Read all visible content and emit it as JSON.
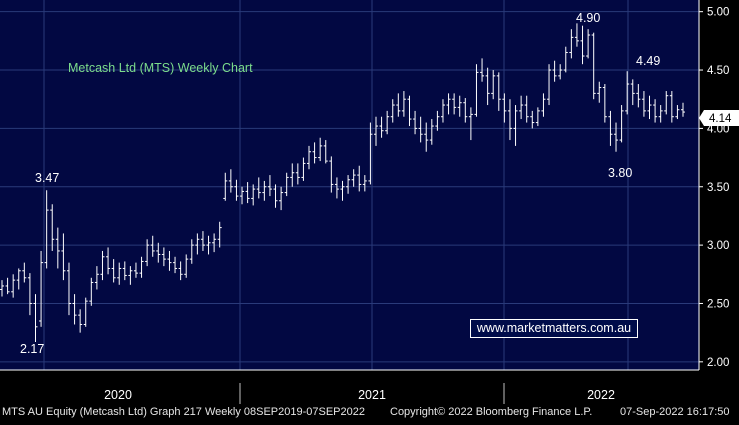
{
  "chart_data": {
    "type": "ohlc",
    "title": "Metcash Ltd (MTS) Weekly Chart",
    "xlabel": "",
    "ylabel": "",
    "ylim": [
      1.93,
      5.1
    ],
    "y_ticks": [
      "2.00",
      "2.50",
      "3.00",
      "3.50",
      "4.00",
      "4.50",
      "5.00"
    ],
    "x_period_labels": [
      "2020",
      "2021",
      "2022"
    ],
    "grid": true,
    "last_price_label": "4.14",
    "annotations": [
      "3.47",
      "2.17",
      "4.90",
      "4.49",
      "3.80"
    ],
    "colors": {
      "background": "#020842",
      "bars": "#ffffff",
      "grid": "#2a3a7a",
      "title": "#7cdc8c",
      "axis_panel": "#000000",
      "last_price_box": "#ffffff"
    },
    "weeks": [
      {
        "o": 2.62,
        "h": 2.7,
        "l": 2.56,
        "c": 2.65
      },
      {
        "o": 2.65,
        "h": 2.72,
        "l": 2.58,
        "c": 2.6
      },
      {
        "o": 2.6,
        "h": 2.75,
        "l": 2.55,
        "c": 2.7
      },
      {
        "o": 2.7,
        "h": 2.8,
        "l": 2.62,
        "c": 2.78
      },
      {
        "o": 2.78,
        "h": 2.85,
        "l": 2.68,
        "c": 2.72
      },
      {
        "o": 2.72,
        "h": 2.76,
        "l": 2.4,
        "c": 2.5
      },
      {
        "o": 2.5,
        "h": 2.58,
        "l": 2.17,
        "c": 2.3
      },
      {
        "o": 2.35,
        "h": 2.95,
        "l": 2.3,
        "c": 2.85
      },
      {
        "o": 2.85,
        "h": 3.47,
        "l": 2.8,
        "c": 3.3
      },
      {
        "o": 3.3,
        "h": 3.35,
        "l": 2.95,
        "c": 3.05
      },
      {
        "o": 3.05,
        "h": 3.15,
        "l": 2.8,
        "c": 2.95
      },
      {
        "o": 2.95,
        "h": 3.1,
        "l": 2.7,
        "c": 2.78
      },
      {
        "o": 2.78,
        "h": 2.85,
        "l": 2.4,
        "c": 2.5
      },
      {
        "o": 2.5,
        "h": 2.58,
        "l": 2.32,
        "c": 2.4
      },
      {
        "o": 2.4,
        "h": 2.45,
        "l": 2.25,
        "c": 2.32
      },
      {
        "o": 2.32,
        "h": 2.55,
        "l": 2.3,
        "c": 2.52
      },
      {
        "o": 2.52,
        "h": 2.72,
        "l": 2.48,
        "c": 2.68
      },
      {
        "o": 2.68,
        "h": 2.82,
        "l": 2.62,
        "c": 2.75
      },
      {
        "o": 2.75,
        "h": 2.95,
        "l": 2.7,
        "c": 2.9
      },
      {
        "o": 2.9,
        "h": 2.98,
        "l": 2.75,
        "c": 2.8
      },
      {
        "o": 2.8,
        "h": 2.88,
        "l": 2.68,
        "c": 2.72
      },
      {
        "o": 2.72,
        "h": 2.85,
        "l": 2.66,
        "c": 2.8
      },
      {
        "o": 2.8,
        "h": 2.86,
        "l": 2.7,
        "c": 2.74
      },
      {
        "o": 2.74,
        "h": 2.82,
        "l": 2.66,
        "c": 2.78
      },
      {
        "o": 2.78,
        "h": 2.85,
        "l": 2.72,
        "c": 2.76
      },
      {
        "o": 2.76,
        "h": 2.9,
        "l": 2.72,
        "c": 2.86
      },
      {
        "o": 2.86,
        "h": 3.05,
        "l": 2.82,
        "c": 3.0
      },
      {
        "o": 3.0,
        "h": 3.08,
        "l": 2.9,
        "c": 2.95
      },
      {
        "o": 2.95,
        "h": 3.02,
        "l": 2.85,
        "c": 2.92
      },
      {
        "o": 2.92,
        "h": 2.98,
        "l": 2.82,
        "c": 2.88
      },
      {
        "o": 2.88,
        "h": 2.95,
        "l": 2.78,
        "c": 2.85
      },
      {
        "o": 2.85,
        "h": 2.9,
        "l": 2.76,
        "c": 2.8
      },
      {
        "o": 2.8,
        "h": 2.86,
        "l": 2.7,
        "c": 2.75
      },
      {
        "o": 2.75,
        "h": 2.92,
        "l": 2.72,
        "c": 2.88
      },
      {
        "o": 2.88,
        "h": 3.05,
        "l": 2.84,
        "c": 3.0
      },
      {
        "o": 3.0,
        "h": 3.1,
        "l": 2.92,
        "c": 3.05
      },
      {
        "o": 3.05,
        "h": 3.12,
        "l": 2.95,
        "c": 3.0
      },
      {
        "o": 3.0,
        "h": 3.08,
        "l": 2.92,
        "c": 3.02
      },
      {
        "o": 3.02,
        "h": 3.1,
        "l": 2.94,
        "c": 3.05
      },
      {
        "o": 3.05,
        "h": 3.2,
        "l": 2.98,
        "c": 3.15
      },
      {
        "o": 3.4,
        "h": 3.62,
        "l": 3.38,
        "c": 3.55
      },
      {
        "o": 3.55,
        "h": 3.65,
        "l": 3.45,
        "c": 3.5
      },
      {
        "o": 3.5,
        "h": 3.56,
        "l": 3.38,
        "c": 3.42
      },
      {
        "o": 3.42,
        "h": 3.5,
        "l": 3.35,
        "c": 3.46
      },
      {
        "o": 3.46,
        "h": 3.54,
        "l": 3.36,
        "c": 3.4
      },
      {
        "o": 3.4,
        "h": 3.52,
        "l": 3.34,
        "c": 3.48
      },
      {
        "o": 3.48,
        "h": 3.58,
        "l": 3.4,
        "c": 3.45
      },
      {
        "o": 3.45,
        "h": 3.55,
        "l": 3.38,
        "c": 3.5
      },
      {
        "o": 3.5,
        "h": 3.6,
        "l": 3.42,
        "c": 3.48
      },
      {
        "o": 3.48,
        "h": 3.52,
        "l": 3.32,
        "c": 3.38
      },
      {
        "o": 3.38,
        "h": 3.5,
        "l": 3.3,
        "c": 3.45
      },
      {
        "o": 3.45,
        "h": 3.62,
        "l": 3.42,
        "c": 3.58
      },
      {
        "o": 3.58,
        "h": 3.7,
        "l": 3.5,
        "c": 3.62
      },
      {
        "o": 3.62,
        "h": 3.7,
        "l": 3.52,
        "c": 3.58
      },
      {
        "o": 3.58,
        "h": 3.75,
        "l": 3.55,
        "c": 3.7
      },
      {
        "o": 3.7,
        "h": 3.85,
        "l": 3.65,
        "c": 3.8
      },
      {
        "o": 3.8,
        "h": 3.88,
        "l": 3.7,
        "c": 3.75
      },
      {
        "o": 3.75,
        "h": 3.92,
        "l": 3.72,
        "c": 3.85
      },
      {
        "o": 3.85,
        "h": 3.9,
        "l": 3.7,
        "c": 3.72
      },
      {
        "o": 3.72,
        "h": 3.76,
        "l": 3.45,
        "c": 3.52
      },
      {
        "o": 3.52,
        "h": 3.58,
        "l": 3.4,
        "c": 3.48
      },
      {
        "o": 3.48,
        "h": 3.55,
        "l": 3.38,
        "c": 3.5
      },
      {
        "o": 3.5,
        "h": 3.6,
        "l": 3.44,
        "c": 3.56
      },
      {
        "o": 3.56,
        "h": 3.65,
        "l": 3.5,
        "c": 3.6
      },
      {
        "o": 3.6,
        "h": 3.68,
        "l": 3.46,
        "c": 3.52
      },
      {
        "o": 3.52,
        "h": 3.6,
        "l": 3.46,
        "c": 3.55
      },
      {
        "o": 3.55,
        "h": 4.05,
        "l": 3.52,
        "c": 3.95
      },
      {
        "o": 3.95,
        "h": 4.1,
        "l": 3.85,
        "c": 4.02
      },
      {
        "o": 4.02,
        "h": 4.1,
        "l": 3.92,
        "c": 3.98
      },
      {
        "o": 3.98,
        "h": 4.15,
        "l": 3.95,
        "c": 4.1
      },
      {
        "o": 4.1,
        "h": 4.25,
        "l": 4.05,
        "c": 4.2
      },
      {
        "o": 4.2,
        "h": 4.3,
        "l": 4.1,
        "c": 4.15
      },
      {
        "o": 4.15,
        "h": 4.32,
        "l": 4.1,
        "c": 4.25
      },
      {
        "o": 4.25,
        "h": 4.28,
        "l": 4.02,
        "c": 4.08
      },
      {
        "o": 4.08,
        "h": 4.15,
        "l": 3.95,
        "c": 4.0
      },
      {
        "o": 4.0,
        "h": 4.1,
        "l": 3.88,
        "c": 3.95
      },
      {
        "o": 3.95,
        "h": 4.05,
        "l": 3.8,
        "c": 3.9
      },
      {
        "o": 3.9,
        "h": 4.08,
        "l": 3.86,
        "c": 4.02
      },
      {
        "o": 4.02,
        "h": 4.15,
        "l": 3.98,
        "c": 4.1
      },
      {
        "o": 4.1,
        "h": 4.25,
        "l": 4.05,
        "c": 4.2
      },
      {
        "o": 4.2,
        "h": 4.3,
        "l": 4.12,
        "c": 4.25
      },
      {
        "o": 4.25,
        "h": 4.3,
        "l": 4.12,
        "c": 4.18
      },
      {
        "o": 4.18,
        "h": 4.28,
        "l": 4.1,
        "c": 4.22
      },
      {
        "o": 4.22,
        "h": 4.26,
        "l": 4.05,
        "c": 4.1
      },
      {
        "o": 4.1,
        "h": 4.18,
        "l": 3.9,
        "c": 4.12
      },
      {
        "o": 4.12,
        "h": 4.55,
        "l": 4.1,
        "c": 4.48
      },
      {
        "o": 4.48,
        "h": 4.6,
        "l": 4.4,
        "c": 4.45
      },
      {
        "o": 4.45,
        "h": 4.52,
        "l": 4.2,
        "c": 4.3
      },
      {
        "o": 4.3,
        "h": 4.5,
        "l": 4.25,
        "c": 4.45
      },
      {
        "o": 4.45,
        "h": 4.48,
        "l": 4.15,
        "c": 4.25
      },
      {
        "o": 4.25,
        "h": 4.3,
        "l": 4.05,
        "c": 4.15
      },
      {
        "o": 4.15,
        "h": 4.25,
        "l": 3.9,
        "c": 4.0
      },
      {
        "o": 4.0,
        "h": 4.2,
        "l": 3.85,
        "c": 4.15
      },
      {
        "o": 4.15,
        "h": 4.28,
        "l": 4.08,
        "c": 4.2
      },
      {
        "o": 4.2,
        "h": 4.28,
        "l": 4.05,
        "c": 4.1
      },
      {
        "o": 4.1,
        "h": 4.15,
        "l": 4.0,
        "c": 4.05
      },
      {
        "o": 4.05,
        "h": 4.18,
        "l": 4.02,
        "c": 4.15
      },
      {
        "o": 4.15,
        "h": 4.3,
        "l": 4.1,
        "c": 4.25
      },
      {
        "o": 4.25,
        "h": 4.55,
        "l": 4.2,
        "c": 4.5
      },
      {
        "o": 4.5,
        "h": 4.58,
        "l": 4.4,
        "c": 4.45
      },
      {
        "o": 4.45,
        "h": 4.55,
        "l": 4.42,
        "c": 4.5
      },
      {
        "o": 4.5,
        "h": 4.7,
        "l": 4.48,
        "c": 4.65
      },
      {
        "o": 4.65,
        "h": 4.85,
        "l": 4.6,
        "c": 4.78
      },
      {
        "o": 4.78,
        "h": 4.9,
        "l": 4.7,
        "c": 4.75
      },
      {
        "o": 4.75,
        "h": 4.88,
        "l": 4.55,
        "c": 4.62
      },
      {
        "o": 4.62,
        "h": 4.85,
        "l": 4.6,
        "c": 4.8
      },
      {
        "o": 4.8,
        "h": 4.82,
        "l": 4.25,
        "c": 4.3
      },
      {
        "o": 4.3,
        "h": 4.4,
        "l": 4.22,
        "c": 4.35
      },
      {
        "o": 4.35,
        "h": 4.38,
        "l": 4.05,
        "c": 4.1
      },
      {
        "o": 4.1,
        "h": 4.15,
        "l": 3.85,
        "c": 3.95
      },
      {
        "o": 3.95,
        "h": 4.05,
        "l": 3.8,
        "c": 3.9
      },
      {
        "o": 3.9,
        "h": 4.2,
        "l": 3.88,
        "c": 4.15
      },
      {
        "o": 4.15,
        "h": 4.49,
        "l": 4.12,
        "c": 4.38
      },
      {
        "o": 4.38,
        "h": 4.42,
        "l": 4.2,
        "c": 4.3
      },
      {
        "o": 4.3,
        "h": 4.38,
        "l": 4.18,
        "c": 4.25
      },
      {
        "o": 4.25,
        "h": 4.32,
        "l": 4.1,
        "c": 4.15
      },
      {
        "o": 4.15,
        "h": 4.28,
        "l": 4.08,
        "c": 4.2
      },
      {
        "o": 4.2,
        "h": 4.25,
        "l": 4.05,
        "c": 4.1
      },
      {
        "o": 4.1,
        "h": 4.2,
        "l": 4.05,
        "c": 4.15
      },
      {
        "o": 4.15,
        "h": 4.32,
        "l": 4.12,
        "c": 4.28
      },
      {
        "o": 4.28,
        "h": 4.32,
        "l": 4.05,
        "c": 4.1
      },
      {
        "o": 4.1,
        "h": 4.2,
        "l": 4.08,
        "c": 4.16
      },
      {
        "o": 4.16,
        "h": 4.22,
        "l": 4.1,
        "c": 4.14
      }
    ]
  },
  "chart": {
    "title": "Metcash Ltd (MTS) Weekly Chart",
    "last_price": "4.14",
    "years": [
      "2020",
      "2021",
      "2022"
    ],
    "ann_high_2020": "3.47",
    "ann_low_2020": "2.17",
    "ann_high_2022": "4.90",
    "ann_swing_2022": "4.49",
    "ann_low_2022": "3.80"
  },
  "link": {
    "text": "www.marketmatters.com.au"
  },
  "footer": {
    "left": "MTS AU Equity (Metcash Ltd) Graph 217  Weekly 08SEP2019-07SEP2022",
    "copyright": "Copyright© 2022 Bloomberg Finance L.P.",
    "timestamp": "07-Sep-2022 16:17:50"
  }
}
